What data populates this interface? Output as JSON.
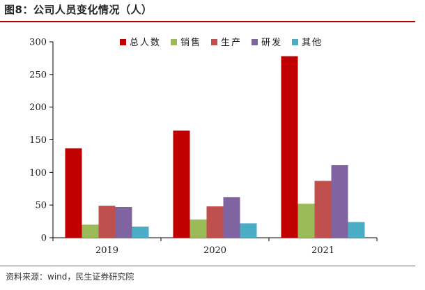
{
  "figure": {
    "title": "图8：公司人员变化情况（人）",
    "source": "资料来源：wind，民生证券研究院"
  },
  "chart_data": {
    "type": "bar",
    "categories": [
      "2019",
      "2020",
      "2021"
    ],
    "series": [
      {
        "name": "总人数",
        "values": [
          137,
          164,
          278
        ],
        "color": "#c00000"
      },
      {
        "name": "销售",
        "values": [
          20,
          28,
          52
        ],
        "color": "#9bbb59"
      },
      {
        "name": "生产",
        "values": [
          49,
          48,
          87
        ],
        "color": "#c0504d"
      },
      {
        "name": "研发",
        "values": [
          47,
          62,
          111
        ],
        "color": "#8064a2"
      },
      {
        "name": "其他",
        "values": [
          17,
          22,
          24
        ],
        "color": "#4bacc6"
      }
    ],
    "ylim": [
      0,
      300
    ],
    "yticks": [
      0,
      50,
      100,
      150,
      200,
      250,
      300
    ],
    "legend": "top-right",
    "grid": false
  }
}
